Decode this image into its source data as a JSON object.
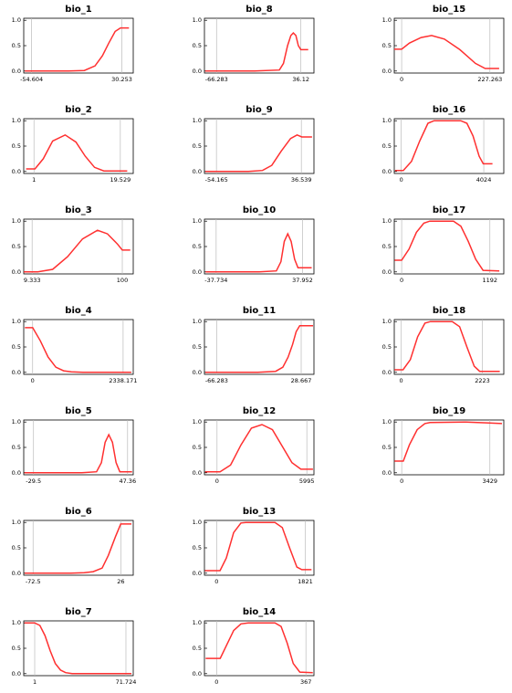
{
  "chart_data": [
    {
      "type": "line",
      "title": "bio_1",
      "color": "#ff3030",
      "x": [
        -61,
        -20,
        -5,
        5,
        12,
        18,
        24,
        29,
        37
      ],
      "values": [
        0,
        0,
        0.01,
        0.1,
        0.3,
        0.55,
        0.78,
        0.85,
        0.85
      ],
      "xlim": [
        -62,
        41
      ],
      "xticks": [
        -54.604,
        30.253
      ],
      "ylim": [
        -0.04,
        1.04
      ],
      "yticks": [
        {
          "value": 0,
          "label": "0.0"
        },
        {
          "value": 0.5,
          "label": "0.5"
        },
        {
          "value": 1,
          "label": "1.0"
        }
      ]
    },
    {
      "type": "line",
      "title": "bio_2",
      "color": "#ff3030",
      "x": [
        -0.7,
        1.2,
        3,
        5,
        7.7,
        10,
        12,
        14,
        16,
        21
      ],
      "values": [
        0.05,
        0.05,
        0.25,
        0.6,
        0.72,
        0.58,
        0.3,
        0.08,
        0.01,
        0.01
      ],
      "xlim": [
        -1.2,
        22.3
      ],
      "xticks": [
        1,
        19.529
      ],
      "ylim": [
        -0.04,
        1.04
      ],
      "yticks": [
        {
          "value": 0,
          "label": "0.0"
        },
        {
          "value": 0.5,
          "label": "0.5"
        },
        {
          "value": 1,
          "label": "1.0"
        }
      ]
    },
    {
      "type": "line",
      "title": "bio_3",
      "color": "#ff3030",
      "x": [
        1,
        15,
        30,
        45,
        60,
        75,
        85,
        95,
        100,
        108
      ],
      "values": [
        0,
        0,
        0.05,
        0.3,
        0.65,
        0.82,
        0.75,
        0.55,
        0.43,
        0.43
      ],
      "xlim": [
        0.9,
        111
      ],
      "xticks": [
        9.333,
        100
      ],
      "ylim": [
        -0.04,
        1.04
      ],
      "yticks": [
        {
          "value": 0,
          "label": "0.0"
        },
        {
          "value": 0.5,
          "label": "0.5"
        },
        {
          "value": 1,
          "label": "1.0"
        }
      ]
    },
    {
      "type": "line",
      "title": "bio_4",
      "color": "#ff3030",
      "x": [
        -200,
        0,
        200,
        400,
        600,
        800,
        1000,
        1300,
        2550
      ],
      "values": [
        0.88,
        0.88,
        0.62,
        0.3,
        0.1,
        0.03,
        0.01,
        0,
        0
      ],
      "xlim": [
        -230,
        2600
      ],
      "xticks": [
        0,
        2338.171
      ],
      "ylim": [
        -0.04,
        1.04
      ],
      "yticks": [
        {
          "value": 0,
          "label": "0.0"
        },
        {
          "value": 0.5,
          "label": "0.5"
        },
        {
          "value": 1,
          "label": "1.0"
        }
      ]
    },
    {
      "type": "line",
      "title": "bio_5",
      "color": "#ff3030",
      "x": [
        -37,
        10,
        22,
        26,
        29,
        32,
        35,
        38,
        41,
        51
      ],
      "values": [
        0,
        0,
        0.02,
        0.2,
        0.6,
        0.75,
        0.6,
        0.2,
        0.02,
        0.02
      ],
      "xlim": [
        -37.5,
        52
      ],
      "xticks": [
        -29.5,
        47.36
      ],
      "ylim": [
        -0.04,
        1.04
      ],
      "yticks": [
        {
          "value": 0,
          "label": "0.0"
        },
        {
          "value": 0.5,
          "label": "0.5"
        },
        {
          "value": 1,
          "label": "1.0"
        }
      ]
    },
    {
      "type": "line",
      "title": "bio_6",
      "color": "#ff3030",
      "x": [
        -82,
        -30,
        -15,
        -5,
        5,
        12,
        20,
        26,
        38
      ],
      "values": [
        0,
        0,
        0.01,
        0.03,
        0.1,
        0.35,
        0.72,
        0.97,
        0.97
      ],
      "xlim": [
        -83,
        40
      ],
      "xticks": [
        -72.5,
        26
      ],
      "ylim": [
        -0.04,
        1.04
      ],
      "yticks": [
        {
          "value": 0,
          "label": "0.0"
        },
        {
          "value": 0.5,
          "label": "0.5"
        },
        {
          "value": 1,
          "label": "1.0"
        }
      ]
    },
    {
      "type": "line",
      "title": "bio_7",
      "color": "#ff3030",
      "x": [
        -7,
        1,
        5,
        9,
        13,
        17,
        21,
        25,
        30,
        76
      ],
      "values": [
        1,
        1,
        0.95,
        0.75,
        0.45,
        0.2,
        0.07,
        0.02,
        0,
        0
      ],
      "xlim": [
        -7.5,
        77.4
      ],
      "xticks": [
        1,
        71.724
      ],
      "ylim": [
        -0.04,
        1.04
      ],
      "yticks": [
        {
          "value": 0,
          "label": "0.0"
        },
        {
          "value": 0.5,
          "label": "0.5"
        },
        {
          "value": 1,
          "label": "1.0"
        }
      ]
    },
    {
      "type": "line",
      "title": "bio_8",
      "color": "#ff3030",
      "x": [
        -80,
        -20,
        10,
        15,
        20,
        24,
        27,
        30,
        33,
        36,
        45
      ],
      "values": [
        0,
        0,
        0.02,
        0.15,
        0.5,
        0.7,
        0.75,
        0.7,
        0.5,
        0.42,
        0.42
      ],
      "xlim": [
        -81,
        52
      ],
      "xticks": [
        -66.283,
        36.12
      ],
      "ylim": [
        -0.04,
        1.04
      ],
      "yticks": [
        {
          "value": 0,
          "label": "0.0"
        },
        {
          "value": 0.5,
          "label": "0.5"
        },
        {
          "value": 1,
          "label": "1.0"
        }
      ]
    },
    {
      "type": "line",
      "title": "bio_9",
      "color": "#ff3030",
      "x": [
        -66,
        -20,
        -5,
        5,
        15,
        25,
        32,
        37,
        48
      ],
      "values": [
        0,
        0,
        0.02,
        0.12,
        0.4,
        0.65,
        0.72,
        0.68,
        0.68
      ],
      "xlim": [
        -67,
        50
      ],
      "xticks": [
        -54.165,
        36.539
      ],
      "ylim": [
        -0.04,
        1.04
      ],
      "yticks": [
        {
          "value": 0,
          "label": "0.0"
        },
        {
          "value": 0.5,
          "label": "0.5"
        },
        {
          "value": 1,
          "label": "1.0"
        }
      ]
    },
    {
      "type": "line",
      "title": "bio_10",
      "color": "#ff3030",
      "x": [
        -47,
        0,
        15,
        19,
        22,
        25,
        28,
        31,
        34,
        36,
        46
      ],
      "values": [
        0,
        0,
        0.02,
        0.2,
        0.6,
        0.75,
        0.6,
        0.25,
        0.08,
        0.08,
        0.08
      ],
      "xlim": [
        -48,
        48
      ],
      "xticks": [
        -37.734,
        37.952
      ],
      "ylim": [
        -0.04,
        1.04
      ],
      "yticks": [
        {
          "value": 0,
          "label": "0.0"
        },
        {
          "value": 0.5,
          "label": "0.5"
        },
        {
          "value": 1,
          "label": "1.0"
        }
      ]
    },
    {
      "type": "line",
      "title": "bio_11",
      "color": "#ff3030",
      "x": [
        -79,
        -20,
        0,
        8,
        14,
        19,
        23,
        27,
        42
      ],
      "values": [
        0,
        0,
        0.02,
        0.1,
        0.3,
        0.55,
        0.8,
        0.92,
        0.92
      ],
      "xlim": [
        -80,
        43
      ],
      "xticks": [
        -66.283,
        28.667
      ],
      "ylim": [
        -0.04,
        1.04
      ],
      "yticks": [
        {
          "value": 0,
          "label": "0.0"
        },
        {
          "value": 0.5,
          "label": "0.5"
        },
        {
          "value": 1,
          "label": "1.0"
        }
      ]
    },
    {
      "type": "line",
      "title": "bio_12",
      "color": "#ff3030",
      "x": [
        -800,
        200,
        900,
        1600,
        2300,
        3000,
        3700,
        4400,
        5000,
        5600,
        6400
      ],
      "values": [
        0.02,
        0.02,
        0.15,
        0.55,
        0.88,
        0.95,
        0.85,
        0.5,
        0.2,
        0.07,
        0.07
      ],
      "xlim": [
        -840,
        6470
      ],
      "xticks": [
        0,
        5995
      ],
      "ylim": [
        -0.04,
        1.04
      ],
      "yticks": [
        {
          "value": 0,
          "label": "0.0"
        },
        {
          "value": 0.5,
          "label": "0.5"
        },
        {
          "value": 1,
          "label": "1.0"
        }
      ]
    },
    {
      "type": "line",
      "title": "bio_13",
      "color": "#ff3030",
      "x": [
        -240,
        70,
        200,
        350,
        500,
        600,
        1200,
        1350,
        1500,
        1650,
        1750,
        1950
      ],
      "values": [
        0.05,
        0.05,
        0.3,
        0.8,
        0.99,
        1,
        1,
        0.9,
        0.5,
        0.12,
        0.07,
        0.07
      ],
      "xlim": [
        -250,
        2000
      ],
      "xticks": [
        0,
        1821
      ],
      "ylim": [
        -0.04,
        1.04
      ],
      "yticks": [
        {
          "value": 0,
          "label": "0.0"
        },
        {
          "value": 0.5,
          "label": "0.5"
        },
        {
          "value": 1,
          "label": "1.0"
        }
      ]
    },
    {
      "type": "line",
      "title": "bio_14",
      "color": "#ff3030",
      "x": [
        -45,
        15,
        40,
        70,
        100,
        130,
        240,
        265,
        290,
        315,
        342,
        395
      ],
      "values": [
        0.3,
        0.3,
        0.55,
        0.85,
        0.98,
        1,
        1,
        0.93,
        0.6,
        0.2,
        0.03,
        0.02
      ],
      "xlim": [
        -50,
        400
      ],
      "xticks": [
        0,
        367
      ],
      "ylim": [
        -0.04,
        1.04
      ],
      "yticks": [
        {
          "value": 0,
          "label": "0.0"
        },
        {
          "value": 0.5,
          "label": "0.5"
        },
        {
          "value": 1,
          "label": "1.0"
        }
      ]
    },
    {
      "type": "line",
      "title": "bio_15",
      "color": "#ff3030",
      "x": [
        -19,
        0,
        20,
        50,
        77,
        110,
        150,
        190,
        215,
        251
      ],
      "values": [
        0.43,
        0.43,
        0.55,
        0.66,
        0.7,
        0.63,
        0.42,
        0.15,
        0.05,
        0.05
      ],
      "xlim": [
        -19,
        263
      ],
      "xticks": [
        0,
        227.263
      ],
      "ylim": [
        -0.04,
        1.04
      ],
      "yticks": [
        {
          "value": 0,
          "label": "0.0"
        },
        {
          "value": 0.5,
          "label": "0.5"
        },
        {
          "value": 1,
          "label": "1.0"
        }
      ]
    },
    {
      "type": "line",
      "title": "bio_16",
      "color": "#ff3030",
      "x": [
        -300,
        100,
        500,
        900,
        1300,
        1600,
        2900,
        3200,
        3500,
        3800,
        4000,
        4450
      ],
      "values": [
        0.02,
        0.02,
        0.2,
        0.6,
        0.95,
        1,
        1,
        0.95,
        0.7,
        0.3,
        0.15,
        0.15
      ],
      "xlim": [
        -340,
        5000
      ],
      "xticks": [
        0,
        4024
      ],
      "ylim": [
        -0.04,
        1.04
      ],
      "yticks": [
        {
          "value": 0,
          "label": "0.0"
        },
        {
          "value": 0.5,
          "label": "0.5"
        },
        {
          "value": 1,
          "label": "1.0"
        }
      ]
    },
    {
      "type": "line",
      "title": "bio_17",
      "color": "#ff3030",
      "x": [
        -95,
        0,
        100,
        200,
        300,
        380,
        700,
        800,
        900,
        1000,
        1100,
        1320
      ],
      "values": [
        0.23,
        0.23,
        0.45,
        0.78,
        0.96,
        1,
        1,
        0.9,
        0.6,
        0.25,
        0.03,
        0.02
      ],
      "xlim": [
        -100,
        1380
      ],
      "xticks": [
        0,
        1192
      ],
      "ylim": [
        -0.04,
        1.04
      ],
      "yticks": [
        {
          "value": 0,
          "label": "0.0"
        },
        {
          "value": 0.5,
          "label": "0.5"
        },
        {
          "value": 1,
          "label": "1.0"
        }
      ]
    },
    {
      "type": "line",
      "title": "bio_18",
      "color": "#ff3030",
      "x": [
        -185,
        50,
        250,
        450,
        650,
        800,
        1400,
        1600,
        1800,
        2000,
        2150,
        2700
      ],
      "values": [
        0.05,
        0.05,
        0.25,
        0.7,
        0.97,
        1,
        1,
        0.9,
        0.5,
        0.12,
        0.02,
        0.02
      ],
      "xlim": [
        -190,
        2810
      ],
      "xticks": [
        0,
        2223
      ],
      "ylim": [
        -0.04,
        1.04
      ],
      "yticks": [
        {
          "value": 0,
          "label": "0.0"
        },
        {
          "value": 0.5,
          "label": "0.5"
        },
        {
          "value": 1,
          "label": "1.0"
        }
      ]
    },
    {
      "type": "line",
      "title": "bio_19",
      "color": "#ff3030",
      "x": [
        -280,
        60,
        300,
        600,
        900,
        1100,
        2500,
        3400,
        3900
      ],
      "values": [
        0.23,
        0.23,
        0.55,
        0.85,
        0.97,
        0.99,
        1,
        0.98,
        0.97
      ],
      "xlim": [
        -290,
        3970
      ],
      "xticks": [
        0,
        3429
      ],
      "ylim": [
        -0.04,
        1.04
      ],
      "yticks": [
        {
          "value": 0,
          "label": "0.0"
        },
        {
          "value": 0.5,
          "label": "0.5"
        },
        {
          "value": 1,
          "label": "1.0"
        }
      ]
    }
  ]
}
